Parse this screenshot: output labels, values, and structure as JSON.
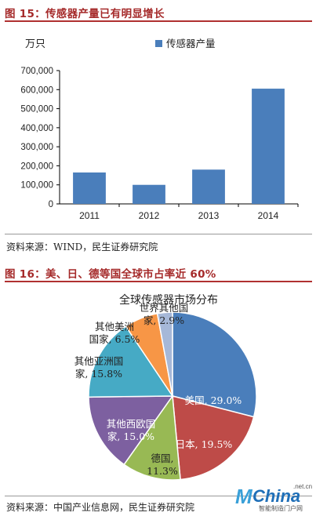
{
  "fig15_title": "图 15：传感器产量已有明显增长",
  "fig15_source": "资料来源：WIND，民生证券研究院",
  "fig16_title": "图 16：美、日、德等国全球市占率近 60%",
  "fig16_source": "资料来源：中国产业信息网，民生证券研究院",
  "logo": {
    "mark": "M",
    "word": "China",
    "net": ".net.cn",
    "sub": "智能制造门户网"
  },
  "chart_data": [
    {
      "type": "bar",
      "title": "",
      "ylabel": "万只",
      "xlabel": "",
      "categories": [
        "2011",
        "2012",
        "2013",
        "2014"
      ],
      "series": [
        {
          "name": "传感器产量",
          "values": [
            165000,
            100000,
            180000,
            605000
          ],
          "color": "#4a7ebb"
        }
      ],
      "ylim": [
        0,
        700000
      ],
      "yticks": [
        0,
        100000,
        200000,
        300000,
        400000,
        500000,
        600000,
        700000
      ],
      "ytick_labels": [
        "0",
        "100,000",
        "200,000",
        "300,000",
        "400,000",
        "500,000",
        "600,000",
        "700,000"
      ],
      "legend": "top-right",
      "grid": false
    },
    {
      "type": "pie",
      "title": "全球传感器市场分布",
      "slices": [
        {
          "label": "美国",
          "value": 29.0,
          "text": "美国, 29.0%",
          "color": "#4a7ebb"
        },
        {
          "label": "日本",
          "value": 19.5,
          "text": "日本, 19.5%",
          "color": "#be4b48"
        },
        {
          "label": "德国",
          "value": 11.3,
          "text": "德国, 11.3%",
          "color": "#98b954"
        },
        {
          "label": "其他西欧国家",
          "value": 15.0,
          "text": "其他西欧国家, 15.0%",
          "color": "#7d60a0"
        },
        {
          "label": "其他亚洲国家",
          "value": 15.8,
          "text": "其他亚洲国家, 15.8%",
          "color": "#46aac5"
        },
        {
          "label": "其他美洲国家",
          "value": 6.5,
          "text": "其他美洲国家, 6.5%",
          "color": "#f79646"
        },
        {
          "label": "世界其他国家",
          "value": 2.9,
          "text": "世界其他国家, 2.9%",
          "color": "#a6b8d8"
        }
      ],
      "slice_text_lines": [
        [
          "美国, 29.0%"
        ],
        [
          "日本, 19.5%"
        ],
        [
          "德国,",
          "11.3%"
        ],
        [
          "其他西欧国",
          "家, 15.0%"
        ],
        [
          "其他亚洲国",
          "家, 15.8%"
        ],
        [
          "其他美洲",
          "国家, 6.5%"
        ],
        [
          "世界其他国",
          "家, 2.9%"
        ]
      ]
    }
  ]
}
